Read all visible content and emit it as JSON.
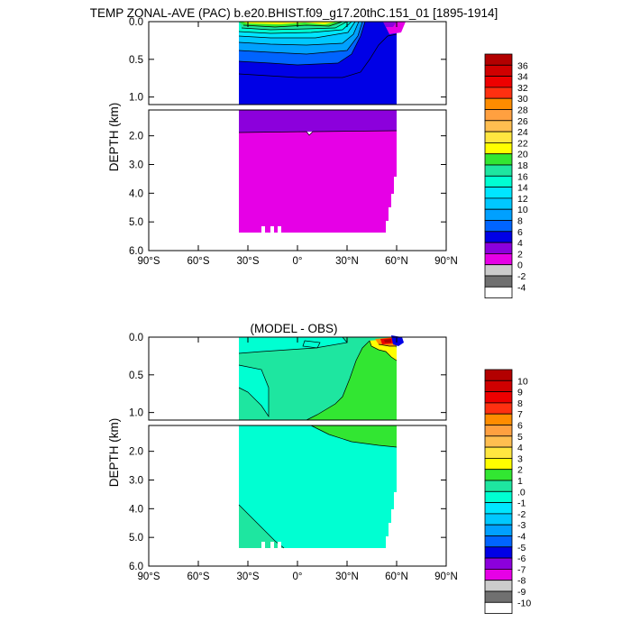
{
  "chart_data": [
    {
      "type": "heatmap",
      "title": "TEMP ZONAL-AVE (PAC) b.e20.BHIST.f09_g17.20thC.151_01 [1895-1914]",
      "ylabel": "DEPTH (km)",
      "xlabel": "",
      "x_range": [
        -90,
        90
      ],
      "x_ticks": [
        -90,
        -60,
        -30,
        0,
        30,
        60,
        90
      ],
      "x_tick_labels": [
        "90°S",
        "60°S",
        "30°S",
        "0°",
        "30°N",
        "60°N",
        "90°N"
      ],
      "upper_panel": {
        "depth_range": [
          0,
          1.1
        ],
        "ticks": [
          0.0,
          0.5,
          1.0
        ],
        "tick_labels": [
          "0.0",
          "0.5",
          "1.0"
        ]
      },
      "lower_panel": {
        "depth_range": [
          1.1,
          6.0
        ],
        "ticks": [
          2.0,
          3.0,
          4.0,
          5.0,
          6.0
        ],
        "tick_labels": [
          "2.0",
          "3.0",
          "4.0",
          "5.0",
          "6.0"
        ]
      },
      "colorbar_labels": [
        "36",
        "34",
        "32",
        "30",
        "28",
        "26",
        "24",
        "22",
        "20",
        "18",
        "16",
        "14",
        "12",
        "10",
        "8",
        "6",
        "4",
        "2",
        "0",
        "-2",
        "-4"
      ],
      "colorbar_colors": [
        "#b30000",
        "#d00000",
        "#ee0000",
        "#ff3010",
        "#ff8c00",
        "#ffa040",
        "#ffbe50",
        "#ffe640",
        "#ffff00",
        "#32e632",
        "#1ee6a0",
        "#00ffd2",
        "#00e6ff",
        "#00c8ff",
        "#00a0ff",
        "#0064ff",
        "#0000e6",
        "#8c00dc",
        "#e600e6",
        "#cccccc",
        "#707070",
        "#ffffff"
      ],
      "grid": false
    },
    {
      "type": "heatmap",
      "title": "(MODEL - OBS)",
      "ylabel": "DEPTH (km)",
      "xlabel": "",
      "x_range": [
        -90,
        90
      ],
      "x_ticks": [
        -90,
        -60,
        -30,
        0,
        30,
        60,
        90
      ],
      "x_tick_labels": [
        "90°S",
        "60°S",
        "30°S",
        "0°",
        "30°N",
        "60°N",
        "90°N"
      ],
      "upper_panel": {
        "depth_range": [
          0,
          1.1
        ],
        "ticks": [
          0.0,
          0.5,
          1.0
        ],
        "tick_labels": [
          "0.0",
          "0.5",
          "1.0"
        ]
      },
      "lower_panel": {
        "depth_range": [
          1.1,
          6.0
        ],
        "ticks": [
          2.0,
          3.0,
          4.0,
          5.0,
          6.0
        ],
        "tick_labels": [
          "2.0",
          "3.0",
          "4.0",
          "5.0",
          "6.0"
        ]
      },
      "colorbar_labels": [
        "10",
        "9",
        "8",
        "7",
        "6",
        "5",
        "4",
        "3",
        "2",
        "1",
        ".0",
        "-1",
        "-2",
        "-3",
        "-4",
        "-5",
        "-6",
        "-7",
        "-8",
        "-9",
        "-10"
      ],
      "colorbar_colors": [
        "#b30000",
        "#d00000",
        "#ee0000",
        "#ff3010",
        "#ff8c00",
        "#ffa040",
        "#ffbe50",
        "#ffe640",
        "#ffff00",
        "#32e632",
        "#1ee6a0",
        "#00ffd2",
        "#00e6ff",
        "#00c8ff",
        "#00a0ff",
        "#0064ff",
        "#0000e6",
        "#8c00dc",
        "#e600e6",
        "#cccccc",
        "#707070",
        "#ffffff"
      ],
      "grid": false
    }
  ]
}
